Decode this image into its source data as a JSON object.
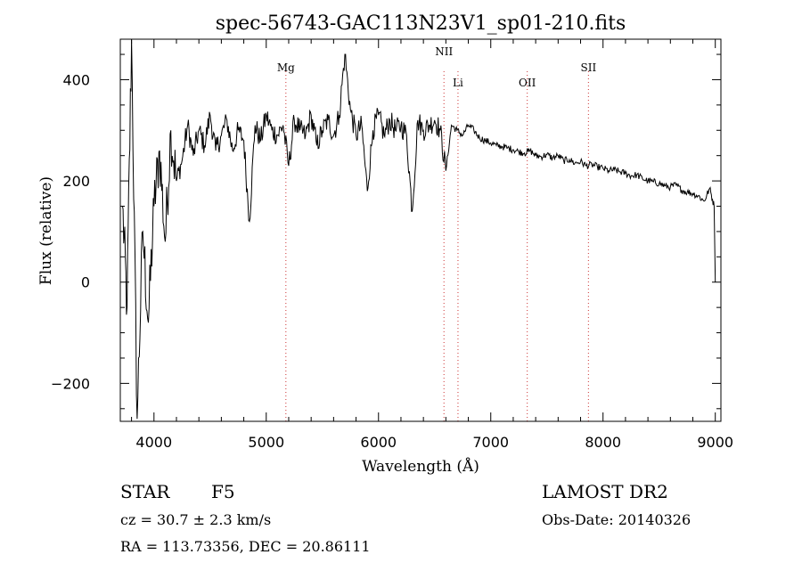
{
  "chart_data": {
    "type": "line",
    "title": "spec-56743-GAC113N23V1_sp01-210.fits",
    "xlabel": "Wavelength (Å)",
    "ylabel": "Flux (relative)",
    "xlim": [
      3700,
      9050
    ],
    "ylim": [
      -275,
      480
    ],
    "xticks": [
      4000,
      5000,
      6000,
      7000,
      8000,
      9000
    ],
    "yticks": [
      -200,
      0,
      200,
      400
    ],
    "xtick_labels": [
      "4000",
      "5000",
      "6000",
      "7000",
      "8000",
      "9000"
    ],
    "ytick_labels": [
      "−200",
      "0",
      "200",
      "400"
    ],
    "line_color": "#000000",
    "marker_color": "#cc3333",
    "lines": [
      {
        "label": "Mg",
        "wavelength": 5175
      },
      {
        "label": "NII",
        "wavelength": 6583
      },
      {
        "label": "Li",
        "wavelength": 6708
      },
      {
        "label": "OII",
        "wavelength": 7325
      },
      {
        "label": "SII",
        "wavelength": 7870
      }
    ],
    "spectrum": {
      "x": [
        3720,
        3760,
        3800,
        3850,
        3900,
        3950,
        4000,
        4050,
        4100,
        4150,
        4200,
        4250,
        4300,
        4350,
        4400,
        4450,
        4500,
        4550,
        4600,
        4650,
        4700,
        4750,
        4800,
        4850,
        4900,
        4950,
        5000,
        5050,
        5100,
        5150,
        5200,
        5250,
        5300,
        5350,
        5400,
        5450,
        5500,
        5550,
        5600,
        5650,
        5700,
        5750,
        5800,
        5850,
        5900,
        5950,
        6000,
        6050,
        6100,
        6150,
        6200,
        6250,
        6300,
        6350,
        6400,
        6450,
        6500,
        6550,
        6600,
        6650,
        6700,
        6750,
        6800,
        6850,
        6900,
        6950,
        7000,
        7050,
        7100,
        7150,
        7200,
        7250,
        7300,
        7350,
        7400,
        7450,
        7500,
        7550,
        7600,
        7650,
        7700,
        7750,
        7800,
        7850,
        7900,
        7950,
        8000,
        8050,
        8100,
        8150,
        8200,
        8250,
        8300,
        8350,
        8400,
        8450,
        8500,
        8550,
        8600,
        8650,
        8700,
        8750,
        8800,
        8850,
        8900,
        8950,
        8990,
        9000
      ],
      "y": [
        150,
        -50,
        480,
        -270,
        100,
        -80,
        150,
        260,
        80,
        300,
        200,
        240,
        310,
        250,
        300,
        270,
        330,
        260,
        290,
        320,
        260,
        300,
        280,
        120,
        310,
        280,
        330,
        300,
        290,
        310,
        230,
        320,
        300,
        290,
        330,
        270,
        300,
        320,
        290,
        330,
        450,
        340,
        290,
        310,
        180,
        300,
        330,
        290,
        320,
        300,
        310,
        290,
        140,
        320,
        300,
        310,
        320,
        300,
        220,
        310,
        300,
        290,
        310,
        300,
        285,
        280,
        275,
        270,
        268,
        265,
        262,
        258,
        255,
        260,
        250,
        248,
        252,
        245,
        250,
        240,
        242,
        235,
        238,
        230,
        232,
        228,
        225,
        220,
        222,
        218,
        215,
        210,
        212,
        205,
        200,
        198,
        195,
        190,
        188,
        192,
        182,
        178,
        175,
        170,
        160,
        185,
        150,
        0
      ]
    }
  },
  "info": {
    "object_type": "STAR",
    "spectral_class": "F5",
    "survey": "LAMOST DR2",
    "velocity": "cz = 30.7 ± 2.3 km/s",
    "obs_date": "Obs-Date: 20140326",
    "coords": "RA = 113.73356, DEC =  20.86111"
  }
}
